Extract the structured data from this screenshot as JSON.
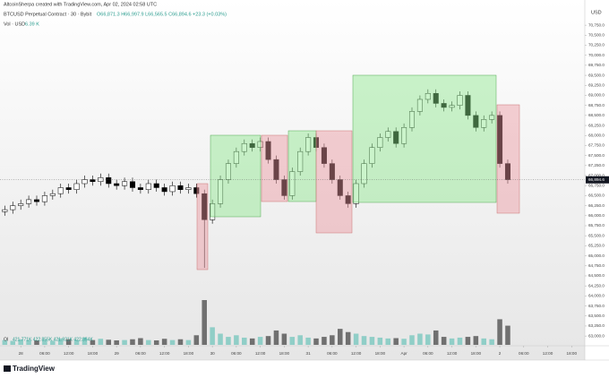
{
  "header": {
    "author_line": "AltcoinSherpa created with TradingView.com, Apr 02, 2024 02:58 UTC",
    "symbol_line": "BTCUSD Perpetual Contract · 30 · Bybit",
    "ohlc_line": "O66,871.3 H66,997.9 L66,565.5 C66,894.6 +23.3 (+0.03%)",
    "volume_label": "Vol · USD",
    "volume_value": "6.39 K"
  },
  "chart_data": {
    "type": "candlestick",
    "currency": "USD",
    "x": [
      -4,
      -2,
      0,
      2,
      4,
      6,
      8,
      10,
      12,
      14,
      16,
      18,
      20,
      22,
      24,
      26,
      28,
      30,
      32,
      34,
      36,
      38,
      40,
      42,
      44,
      46,
      48,
      50,
      52,
      54,
      56,
      58,
      60,
      62,
      64,
      66,
      68,
      70,
      72,
      74,
      76,
      78,
      80,
      82,
      84,
      86,
      88,
      90,
      92,
      94,
      96,
      98,
      100,
      102,
      104,
      106,
      108,
      110,
      112,
      114,
      116,
      118,
      120,
      122
    ],
    "open": [
      66100,
      66150,
      66250,
      66300,
      66400,
      66350,
      66500,
      66550,
      66700,
      66650,
      66800,
      66900,
      66850,
      66950,
      66800,
      66750,
      66850,
      66700,
      66650,
      66800,
      66700,
      66600,
      66750,
      66650,
      66700,
      66550,
      65900,
      66300,
      66900,
      67300,
      67600,
      67800,
      67700,
      67850,
      67400,
      66900,
      66500,
      67100,
      67600,
      67950,
      67700,
      67300,
      66900,
      66500,
      66300,
      66800,
      67300,
      67700,
      67950,
      68100,
      67800,
      68200,
      68600,
      68900,
      69050,
      68800,
      68700,
      68750,
      69000,
      68500,
      68200,
      68400,
      68500,
      67300
    ],
    "high": [
      66250,
      66350,
      66400,
      66500,
      66500,
      66600,
      66650,
      66800,
      66800,
      66900,
      67000,
      67000,
      67050,
      67050,
      66900,
      66950,
      66950,
      66800,
      66900,
      66900,
      66800,
      66850,
      66850,
      66800,
      66800,
      66650,
      66400,
      67000,
      67400,
      67700,
      67900,
      67900,
      67950,
      67950,
      67500,
      67000,
      67200,
      67700,
      68050,
      68050,
      67800,
      67400,
      67000,
      66600,
      66900,
      67400,
      67800,
      68050,
      68200,
      68200,
      68300,
      68700,
      69000,
      69150,
      69150,
      68900,
      68850,
      69100,
      69100,
      68600,
      68500,
      68600,
      68600,
      67400
    ],
    "low": [
      66000,
      66050,
      66150,
      66200,
      66250,
      66250,
      66400,
      66450,
      66550,
      66550,
      66700,
      66750,
      66750,
      66700,
      66650,
      66650,
      66600,
      66550,
      66550,
      66600,
      66500,
      66500,
      66550,
      66550,
      66450,
      64700,
      65800,
      66200,
      66800,
      67200,
      67500,
      67600,
      67600,
      67300,
      66800,
      66400,
      66400,
      67000,
      67500,
      67600,
      67200,
      66800,
      66400,
      66200,
      66200,
      66700,
      67200,
      67600,
      67850,
      67700,
      67700,
      68100,
      68500,
      68800,
      68700,
      68600,
      68600,
      68650,
      68400,
      68100,
      68100,
      68300,
      67200,
      66800
    ],
    "close": [
      66150,
      66250,
      66300,
      66400,
      66350,
      66500,
      66550,
      66700,
      66650,
      66800,
      66900,
      66850,
      66950,
      66800,
      66750,
      66850,
      66700,
      66650,
      66800,
      66700,
      66600,
      66750,
      66650,
      66700,
      66550,
      65900,
      66300,
      66900,
      67300,
      67600,
      67800,
      67700,
      67850,
      67400,
      66900,
      66500,
      67100,
      67600,
      67950,
      67700,
      67300,
      66900,
      66500,
      66300,
      66800,
      67300,
      67700,
      67950,
      68100,
      67800,
      68200,
      68600,
      68900,
      69050,
      68800,
      68700,
      68750,
      69000,
      68500,
      68200,
      68400,
      68500,
      67300,
      66900
    ],
    "volume": [
      300,
      250,
      350,
      300,
      280,
      320,
      260,
      400,
      350,
      300,
      450,
      300,
      380,
      320,
      280,
      300,
      350,
      420,
      300,
      280,
      380,
      300,
      350,
      300,
      600,
      2800,
      1100,
      700,
      500,
      600,
      450,
      400,
      500,
      550,
      900,
      700,
      500,
      600,
      450,
      400,
      500,
      600,
      1000,
      800,
      700,
      550,
      500,
      450,
      400,
      420,
      380,
      600,
      700,
      650,
      900,
      500,
      400,
      450,
      500,
      550,
      400,
      350,
      1600,
      1200
    ],
    "up_color": "#ffffff",
    "down_color": "#000000",
    "volume_up_color": "#80c9c1",
    "volume_down_color": "#5a5a5a",
    "xlim": [
      -5.2,
      141.3
    ],
    "xticks": [
      {
        "value": 0,
        "label": "28"
      },
      {
        "value": 6,
        "label": "06:00"
      },
      {
        "value": 12,
        "label": "12:00"
      },
      {
        "value": 18,
        "label": "18:00"
      },
      {
        "value": 24,
        "label": "29"
      },
      {
        "value": 30,
        "label": "06:00"
      },
      {
        "value": 36,
        "label": "12:00"
      },
      {
        "value": 42,
        "label": "18:00"
      },
      {
        "value": 48,
        "label": "30"
      },
      {
        "value": 54,
        "label": "06:00"
      },
      {
        "value": 60,
        "label": "12:00"
      },
      {
        "value": 66,
        "label": "18:00"
      },
      {
        "value": 72,
        "label": "31"
      },
      {
        "value": 78,
        "label": "06:00"
      },
      {
        "value": 84,
        "label": "12:00"
      },
      {
        "value": 90,
        "label": "18:00"
      },
      {
        "value": 96,
        "label": "Apr"
      },
      {
        "value": 102,
        "label": "06:00"
      },
      {
        "value": 108,
        "label": "12:00"
      },
      {
        "value": 114,
        "label": "18:00"
      },
      {
        "value": 120,
        "label": "2"
      },
      {
        "value": 126,
        "label": "06:00"
      },
      {
        "value": 132,
        "label": "12:00"
      },
      {
        "value": 138,
        "label": "18:00"
      }
    ],
    "ylim": [
      62780,
      71110
    ],
    "yticks": [
      {
        "value": 63000,
        "label": "63,000.0"
      },
      {
        "value": 63250,
        "label": "63,250.0"
      },
      {
        "value": 63500,
        "label": "63,500.0"
      },
      {
        "value": 63750,
        "label": "63,750.0"
      },
      {
        "value": 64000,
        "label": "64,000.0"
      },
      {
        "value": 64250,
        "label": "64,250.0"
      },
      {
        "value": 64500,
        "label": "64,500.0"
      },
      {
        "value": 64750,
        "label": "64,750.0"
      },
      {
        "value": 65000,
        "label": "65,000.0"
      },
      {
        "value": 65250,
        "label": "65,250.0"
      },
      {
        "value": 65500,
        "label": "65,500.0"
      },
      {
        "value": 65750,
        "label": "65,750.0"
      },
      {
        "value": 66000,
        "label": "66,000.0"
      },
      {
        "value": 66250,
        "label": "66,250.0"
      },
      {
        "value": 66500,
        "label": "66,500.0"
      },
      {
        "value": 66750,
        "label": "66,750.0"
      },
      {
        "value": 67000,
        "label": "67,000.0"
      },
      {
        "value": 67250,
        "label": "67,250.0"
      },
      {
        "value": 67500,
        "label": "67,500.0"
      },
      {
        "value": 67750,
        "label": "67,750.0"
      },
      {
        "value": 68000,
        "label": "68,000.0"
      },
      {
        "value": 68250,
        "label": "68,250.0"
      },
      {
        "value": 68500,
        "label": "68,500.0"
      },
      {
        "value": 68750,
        "label": "68,750.0"
      },
      {
        "value": 69000,
        "label": "69,000.0"
      },
      {
        "value": 69250,
        "label": "69,250.0"
      },
      {
        "value": 69500,
        "label": "69,500.0"
      },
      {
        "value": 69750,
        "label": "69,750.0"
      },
      {
        "value": 70000,
        "label": "70,000.0"
      },
      {
        "value": 70250,
        "label": "70,250.0"
      },
      {
        "value": 70500,
        "label": "70,500.0"
      },
      {
        "value": 70750,
        "label": "70,750.0"
      }
    ],
    "last_price": {
      "value": 66894.6,
      "label": "66,894.6"
    }
  },
  "footer": {
    "oi_label": "OI",
    "oi_values": "421.771K 422.855K 421.921K 422.354K",
    "logo": "TradingView"
  }
}
